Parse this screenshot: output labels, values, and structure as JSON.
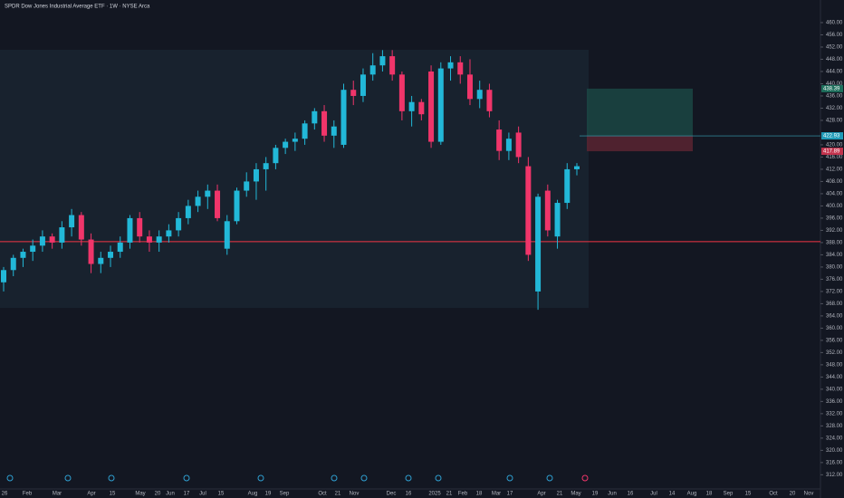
{
  "chart_data": {
    "type": "candlestick",
    "title": "SPDR Dow Jones Industrial Average ETF · 1W · NYSE Arca",
    "up_color": "#22b8d8",
    "down_color": "#f0356a",
    "open": [
      375,
      379,
      383,
      385,
      387,
      390,
      388,
      393,
      397,
      389,
      381,
      383,
      385,
      388,
      396,
      390,
      388,
      390,
      392,
      396,
      400,
      403,
      405,
      386,
      395,
      405,
      408,
      412,
      414,
      419,
      421,
      422,
      427,
      431,
      423,
      420,
      438,
      436,
      443,
      446,
      449,
      443,
      431,
      434,
      444,
      421,
      445,
      447,
      443,
      435,
      438,
      425,
      418,
      424,
      413,
      372,
      405,
      390,
      401,
      412
    ],
    "high": [
      380,
      384,
      386,
      389,
      392,
      391,
      395,
      399,
      398,
      391,
      385,
      387,
      390,
      397,
      398,
      392,
      392,
      394,
      398,
      402,
      405,
      407,
      407,
      397,
      406,
      411,
      414,
      416,
      420,
      422,
      424,
      428,
      432,
      433,
      428,
      440,
      441,
      445,
      450,
      451,
      451,
      444,
      436,
      435,
      446,
      447,
      449,
      449,
      448,
      441,
      440,
      428,
      424,
      426,
      416,
      404,
      407,
      402,
      414,
      414
    ],
    "low": [
      372,
      377,
      380,
      382,
      385,
      386,
      386,
      390,
      387,
      378,
      378,
      380,
      383,
      386,
      388,
      385,
      385,
      388,
      390,
      394,
      398,
      399,
      395,
      384,
      394,
      403,
      402,
      405,
      412,
      417,
      418,
      420,
      425,
      421,
      419,
      419,
      433,
      434,
      441,
      444,
      441,
      428,
      426,
      428,
      419,
      420,
      441,
      440,
      433,
      432,
      429,
      415,
      415,
      414,
      382,
      366,
      390,
      386,
      399,
      410
    ],
    "close": [
      379,
      383,
      385,
      387,
      390,
      388,
      393,
      397,
      389,
      381,
      383,
      385,
      388,
      396,
      390,
      388,
      390,
      392,
      396,
      400,
      403,
      405,
      396,
      395,
      405,
      408,
      412,
      414,
      419,
      421,
      422,
      427,
      431,
      423,
      426,
      438,
      436,
      443,
      446,
      449,
      443,
      431,
      434,
      430,
      421,
      445,
      447,
      443,
      435,
      438,
      431,
      418,
      422,
      416,
      384,
      403,
      392,
      401,
      412,
      413
    ],
    "ylim": [
      304.4,
      467.4
    ],
    "yticks": [
      {
        "value": 312,
        "label": "312.00"
      },
      {
        "value": 316,
        "label": "316.00"
      },
      {
        "value": 320,
        "label": "320.00"
      },
      {
        "value": 324,
        "label": "324.00"
      },
      {
        "value": 328,
        "label": "328.00"
      },
      {
        "value": 332,
        "label": "332.00"
      },
      {
        "value": 336,
        "label": "336.00"
      },
      {
        "value": 340,
        "label": "340.00"
      },
      {
        "value": 344,
        "label": "344.00"
      },
      {
        "value": 348,
        "label": "348.00"
      },
      {
        "value": 352,
        "label": "352.00"
      },
      {
        "value": 356,
        "label": "356.00"
      },
      {
        "value": 360,
        "label": "360.00"
      },
      {
        "value": 364,
        "label": "364.00"
      },
      {
        "value": 368,
        "label": "368.00"
      },
      {
        "value": 372,
        "label": "372.00"
      },
      {
        "value": 376,
        "label": "376.00"
      },
      {
        "value": 380,
        "label": "380.00"
      },
      {
        "value": 384,
        "label": "384.00"
      },
      {
        "value": 388,
        "label": "388.00"
      },
      {
        "value": 392,
        "label": "392.00"
      },
      {
        "value": 396,
        "label": "396.00"
      },
      {
        "value": 400,
        "label": "400.00"
      },
      {
        "value": 404,
        "label": "404.00"
      },
      {
        "value": 408,
        "label": "408.00"
      },
      {
        "value": 412,
        "label": "412.00"
      },
      {
        "value": 416,
        "label": "416.00"
      },
      {
        "value": 420,
        "label": "420.00"
      },
      {
        "value": 428,
        "label": "428.00"
      },
      {
        "value": 432,
        "label": "432.00"
      },
      {
        "value": 436,
        "label": "436.00"
      },
      {
        "value": 440,
        "label": "440.00"
      },
      {
        "value": 444,
        "label": "444.00"
      },
      {
        "value": 448,
        "label": "448.00"
      },
      {
        "value": 452,
        "label": "452.00"
      },
      {
        "value": 456,
        "label": "456.00"
      },
      {
        "value": 460,
        "label": "460.00"
      }
    ],
    "x_labels": [
      "26",
      "Feb",
      "Mar",
      "Apr",
      "15",
      "May",
      "20",
      "Jun",
      "17",
      "Jul",
      "15",
      "Aug",
      "19",
      "Sep",
      "Oct",
      "21",
      "Nov",
      "Dec",
      "16",
      "2025",
      "21",
      "Feb",
      "18",
      "Mar",
      "17",
      "Apr",
      "21",
      "May",
      "19",
      "Jun",
      "16",
      "Jul",
      "14",
      "Aug",
      "18",
      "Sep",
      "15",
      "Oct",
      "20",
      "Nov"
    ],
    "horizontal_line": 388.3,
    "position": {
      "target": 438.39,
      "entry": 422.93,
      "stop": 417.89
    }
  }
}
